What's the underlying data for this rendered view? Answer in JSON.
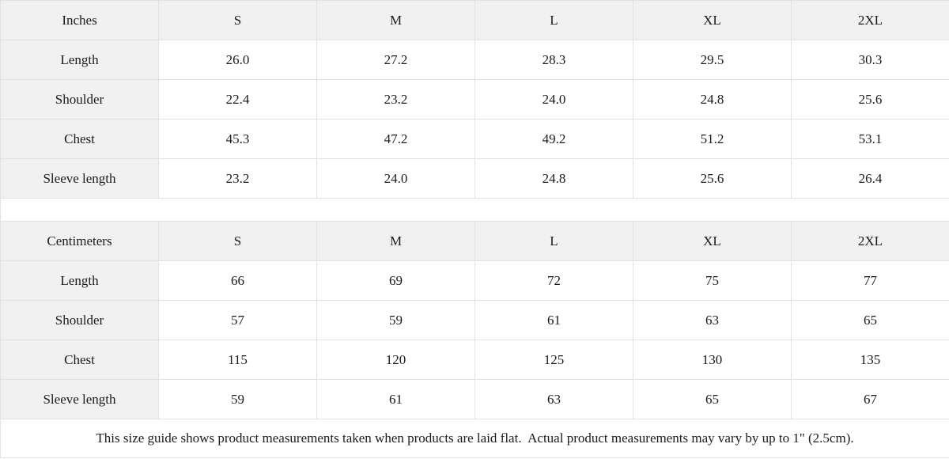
{
  "colors": {
    "header_bg": "#f1f1f1",
    "border": "#e2e2e2",
    "text": "#1b1b1b",
    "cell_bg": "#ffffff"
  },
  "size_guide": {
    "sections": [
      {
        "unit_label": "Inches",
        "size_headers": [
          "S",
          "M",
          "L",
          "XL",
          "2XL"
        ],
        "rows": [
          {
            "label": "Length",
            "values": [
              "26.0",
              "27.2",
              "28.3",
              "29.5",
              "30.3"
            ]
          },
          {
            "label": "Shoulder",
            "values": [
              "22.4",
              "23.2",
              "24.0",
              "24.8",
              "25.6"
            ]
          },
          {
            "label": "Chest",
            "values": [
              "45.3",
              "47.2",
              "49.2",
              "51.2",
              "53.1"
            ]
          },
          {
            "label": "Sleeve length",
            "values": [
              "23.2",
              "24.0",
              "24.8",
              "25.6",
              "26.4"
            ]
          }
        ]
      },
      {
        "unit_label": "Centimeters",
        "size_headers": [
          "S",
          "M",
          "L",
          "XL",
          "2XL"
        ],
        "rows": [
          {
            "label": "Length",
            "values": [
              "66",
              "69",
              "72",
              "75",
              "77"
            ]
          },
          {
            "label": "Shoulder",
            "values": [
              "57",
              "59",
              "61",
              "63",
              "65"
            ]
          },
          {
            "label": "Chest",
            "values": [
              "115",
              "120",
              "125",
              "130",
              "135"
            ]
          },
          {
            "label": "Sleeve length",
            "values": [
              "59",
              "61",
              "63",
              "65",
              "67"
            ]
          }
        ]
      }
    ],
    "footer_note": "This size guide shows product measurements taken when products are laid flat.  Actual product measurements may vary by up to 1\" (2.5cm)."
  }
}
